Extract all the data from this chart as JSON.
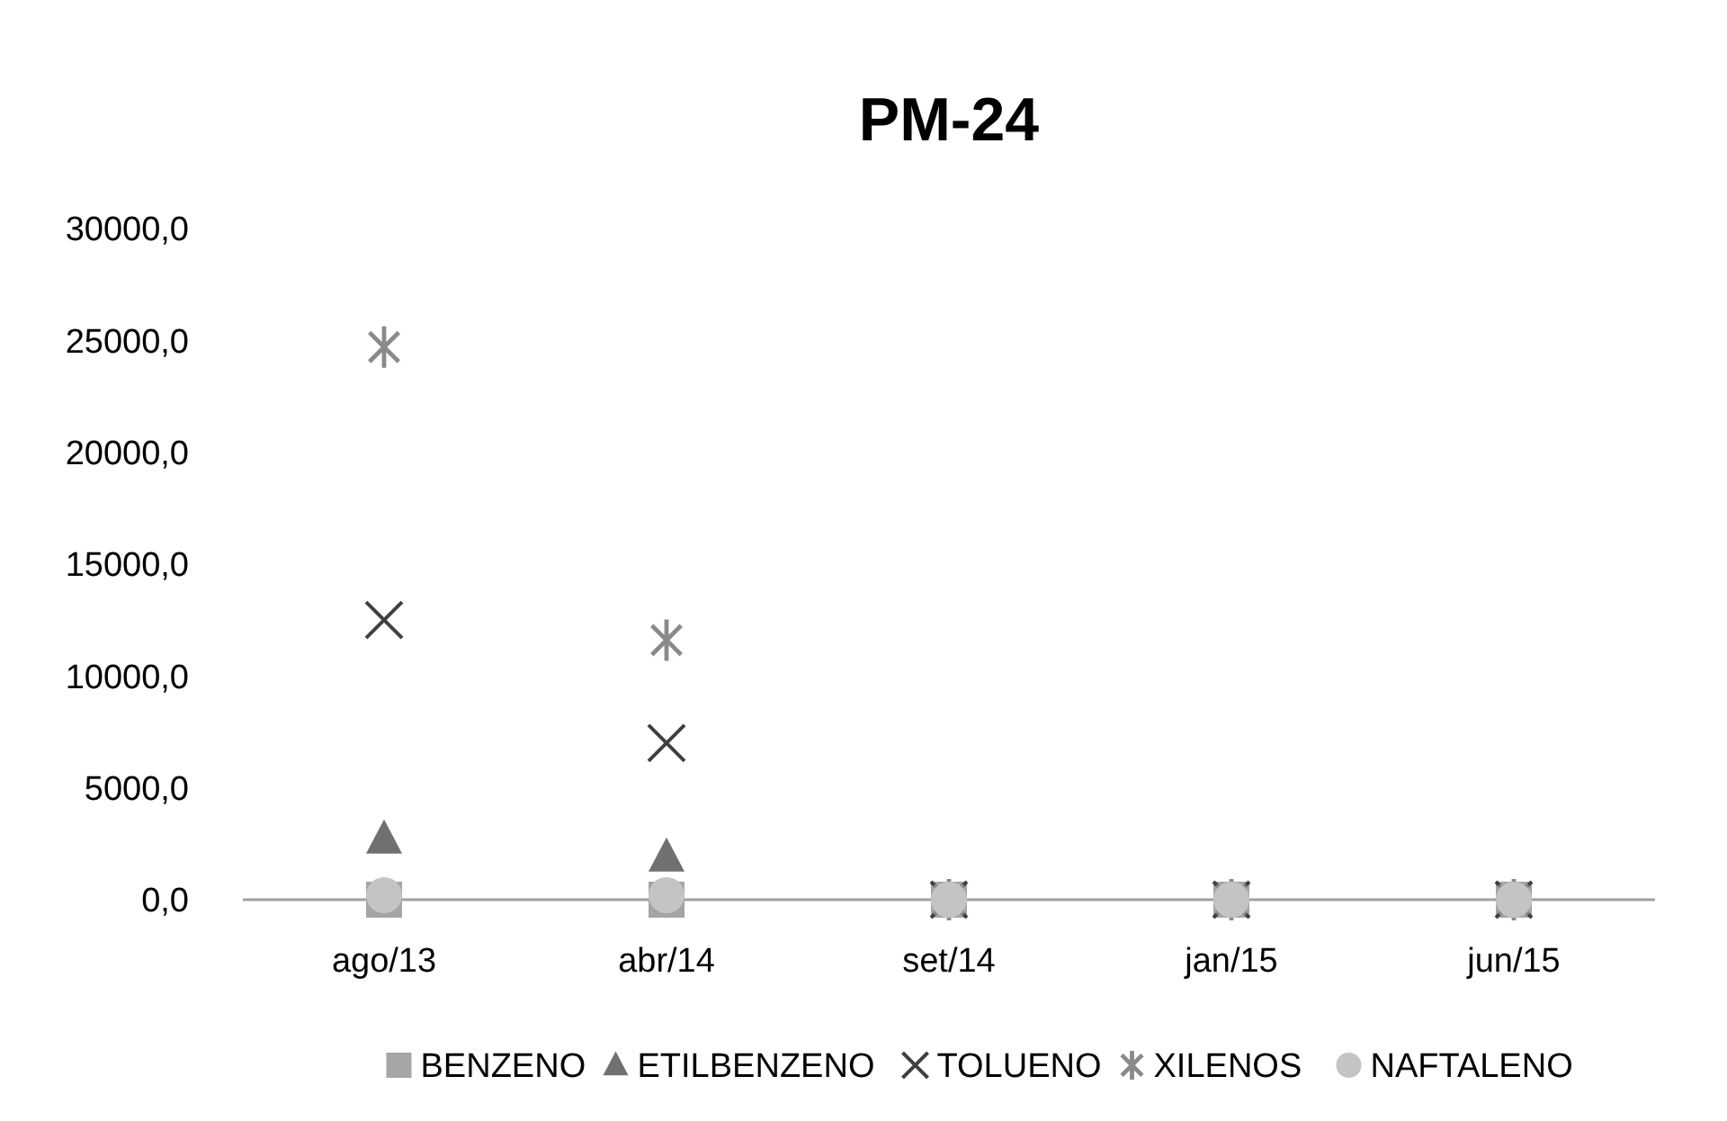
{
  "chart_data": {
    "type": "scatter",
    "title": "PM-24",
    "categories": [
      "ago/13",
      "abr/14",
      "set/14",
      "jan/15",
      "jun/15"
    ],
    "series": [
      {
        "name": "BENZENO",
        "color": "#a5a5a5",
        "marker": "square",
        "values": [
          0,
          0,
          0,
          0,
          0
        ]
      },
      {
        "name": "ETILBENZENO",
        "color": "#707070",
        "marker": "triangle",
        "values": [
          2700,
          1900,
          null,
          null,
          null
        ]
      },
      {
        "name": "TOLUENO",
        "color": "#404040",
        "marker": "cross",
        "values": [
          12500,
          7000,
          0,
          0,
          0
        ]
      },
      {
        "name": "XILENOS",
        "color": "#8a8a8a",
        "marker": "star",
        "values": [
          24700,
          11600,
          0,
          0,
          0
        ]
      },
      {
        "name": "NAFTALENO",
        "color": "#c4c4c4",
        "marker": "circle",
        "values": [
          200,
          200,
          0,
          0,
          0
        ]
      }
    ],
    "ylim": [
      0,
      30000
    ],
    "yticks": [
      {
        "value": 0,
        "label": "0,0"
      },
      {
        "value": 5000,
        "label": "5000,0"
      },
      {
        "value": 10000,
        "label": "10000,0"
      },
      {
        "value": 15000,
        "label": "15000,0"
      },
      {
        "value": 20000,
        "label": "20000,0"
      },
      {
        "value": 25000,
        "label": "25000,0"
      },
      {
        "value": 30000,
        "label": "30000,0"
      }
    ],
    "legend": "bottom"
  }
}
